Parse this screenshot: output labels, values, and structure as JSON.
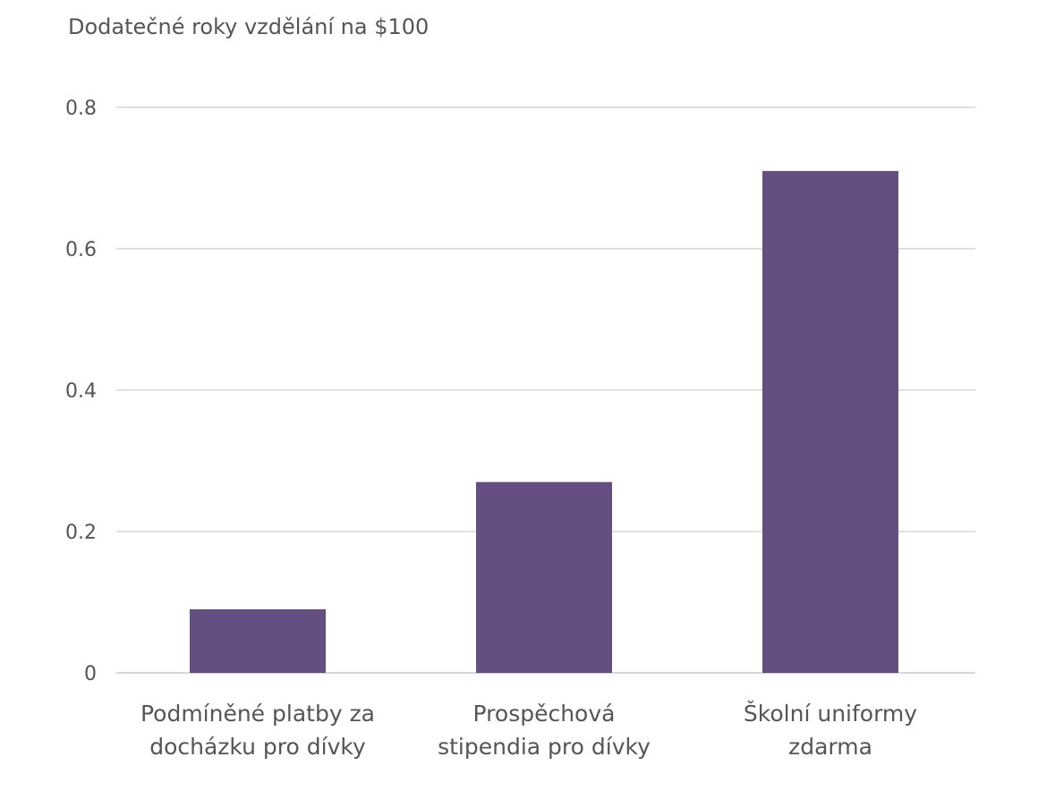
{
  "chart_data": {
    "type": "bar",
    "title": "Dodatečné roky vzdělání na $100",
    "categories": [
      [
        "Podmíněné platby za",
        "docházku pro dívky"
      ],
      [
        "Prospěchová",
        "stipendia pro dívky"
      ],
      [
        "Školní uniformy",
        "zdarma"
      ]
    ],
    "values": [
      0.09,
      0.27,
      0.71
    ],
    "ylim": [
      0,
      0.8
    ],
    "yticks": [
      0,
      0.2,
      0.4,
      0.6,
      0.8
    ],
    "ytick_labels": [
      "0",
      "0.2",
      "0.4",
      "0.6",
      "0.8"
    ],
    "xlabel": "",
    "ylabel": "",
    "grid": true,
    "legend": "none",
    "bar_color": "#654f82"
  }
}
